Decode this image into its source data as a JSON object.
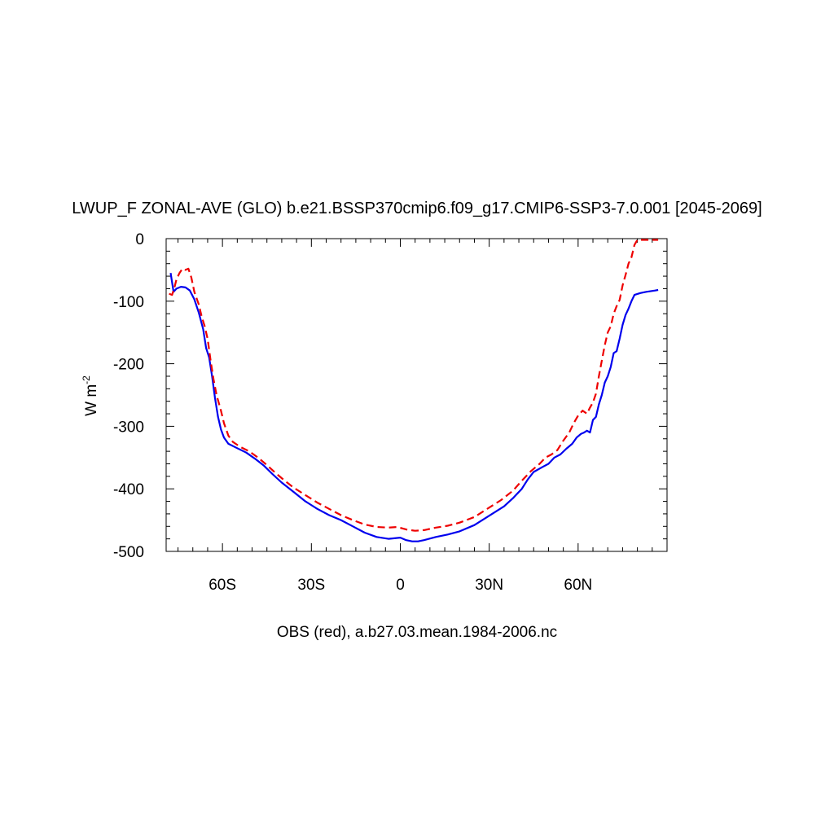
{
  "chart_data": {
    "type": "line",
    "title": "LWUP_F ZONAL-AVE (GLO) b.e21.BSSP370cmip6.f09_g17.CMIP6-SSP3-7.0.001 [2045-2069]",
    "xlabel": "OBS (red), a.b27.03.mean.1984-2006.nc",
    "ylabel": "W m",
    "ylabel_sup": "-2",
    "xlim": [
      -79,
      90
    ],
    "ylim": [
      -500,
      0
    ],
    "x_ticks": [
      {
        "value": -60,
        "label": "60S"
      },
      {
        "value": -30,
        "label": "30S"
      },
      {
        "value": 0,
        "label": "0"
      },
      {
        "value": 30,
        "label": "30N"
      },
      {
        "value": 60,
        "label": "60N"
      }
    ],
    "y_ticks": [
      {
        "value": 0,
        "label": "0"
      },
      {
        "value": -100,
        "label": "-100"
      },
      {
        "value": -200,
        "label": "-200"
      },
      {
        "value": -300,
        "label": "-300"
      },
      {
        "value": -400,
        "label": "-400"
      },
      {
        "value": -500,
        "label": "-500"
      }
    ],
    "series": [
      {
        "color": "#0000ee",
        "style": "solid",
        "points": [
          [
            -77.5,
            -55
          ],
          [
            -76.5,
            -85
          ],
          [
            -75.5,
            -80
          ],
          [
            -74,
            -77
          ],
          [
            -72.5,
            -78
          ],
          [
            -71,
            -83
          ],
          [
            -69.5,
            -97
          ],
          [
            -68,
            -118
          ],
          [
            -66.5,
            -145
          ],
          [
            -65.5,
            -175
          ],
          [
            -64.5,
            -190
          ],
          [
            -63.5,
            -220
          ],
          [
            -62.5,
            -255
          ],
          [
            -61.5,
            -285
          ],
          [
            -60.5,
            -305
          ],
          [
            -59.5,
            -318
          ],
          [
            -58,
            -328
          ],
          [
            -55,
            -335
          ],
          [
            -52,
            -342
          ],
          [
            -49,
            -352
          ],
          [
            -46,
            -363
          ],
          [
            -43,
            -377
          ],
          [
            -40,
            -390
          ],
          [
            -36,
            -405
          ],
          [
            -32,
            -420
          ],
          [
            -28,
            -432
          ],
          [
            -24,
            -442
          ],
          [
            -20,
            -450
          ],
          [
            -16,
            -460
          ],
          [
            -12,
            -470
          ],
          [
            -8,
            -477
          ],
          [
            -4,
            -480
          ],
          [
            0,
            -478
          ],
          [
            2,
            -482
          ],
          [
            4,
            -484
          ],
          [
            6,
            -484
          ],
          [
            8,
            -482
          ],
          [
            12,
            -477
          ],
          [
            16,
            -473
          ],
          [
            20,
            -468
          ],
          [
            25,
            -458
          ],
          [
            30,
            -443
          ],
          [
            35,
            -428
          ],
          [
            38,
            -415
          ],
          [
            41,
            -400
          ],
          [
            43,
            -385
          ],
          [
            45,
            -373
          ],
          [
            48,
            -365
          ],
          [
            50,
            -360
          ],
          [
            52,
            -350
          ],
          [
            54,
            -345
          ],
          [
            56,
            -336
          ],
          [
            58,
            -328
          ],
          [
            59.5,
            -318
          ],
          [
            61,
            -312
          ],
          [
            62,
            -310
          ],
          [
            63,
            -307
          ],
          [
            64,
            -310
          ],
          [
            65,
            -290
          ],
          [
            66,
            -285
          ],
          [
            67,
            -265
          ],
          [
            68,
            -250
          ],
          [
            69,
            -230
          ],
          [
            70,
            -220
          ],
          [
            71,
            -205
          ],
          [
            72,
            -183
          ],
          [
            73,
            -180
          ],
          [
            74,
            -160
          ],
          [
            75,
            -138
          ],
          [
            76,
            -122
          ],
          [
            77,
            -112
          ],
          [
            78,
            -100
          ],
          [
            79,
            -90
          ],
          [
            81,
            -87
          ],
          [
            83,
            -85
          ],
          [
            86,
            -83
          ],
          [
            87,
            -82
          ]
        ]
      },
      {
        "color": "#ee0000",
        "style": "dashed",
        "points": [
          [
            -78,
            -88
          ],
          [
            -77,
            -90
          ],
          [
            -76.2,
            -78
          ],
          [
            -75.5,
            -65
          ],
          [
            -74.5,
            -55
          ],
          [
            -73.5,
            -48
          ],
          [
            -72.5,
            -50
          ],
          [
            -71.5,
            -48
          ],
          [
            -70.5,
            -62
          ],
          [
            -69.5,
            -85
          ],
          [
            -68,
            -105
          ],
          [
            -67,
            -125
          ],
          [
            -66,
            -140
          ],
          [
            -65,
            -160
          ],
          [
            -64,
            -195
          ],
          [
            -63,
            -225
          ],
          [
            -62,
            -250
          ],
          [
            -60.5,
            -275
          ],
          [
            -59.5,
            -295
          ],
          [
            -58,
            -315
          ],
          [
            -56.5,
            -325
          ],
          [
            -54,
            -333
          ],
          [
            -51,
            -340
          ],
          [
            -48,
            -350
          ],
          [
            -45,
            -362
          ],
          [
            -42,
            -375
          ],
          [
            -39,
            -387
          ],
          [
            -36,
            -398
          ],
          [
            -32,
            -410
          ],
          [
            -28,
            -422
          ],
          [
            -24,
            -432
          ],
          [
            -20,
            -442
          ],
          [
            -16,
            -450
          ],
          [
            -12,
            -457
          ],
          [
            -8,
            -461
          ],
          [
            -4,
            -462
          ],
          [
            -1,
            -461
          ],
          [
            2,
            -465
          ],
          [
            5,
            -467
          ],
          [
            8,
            -466
          ],
          [
            12,
            -462
          ],
          [
            16,
            -459
          ],
          [
            20,
            -454
          ],
          [
            25,
            -445
          ],
          [
            30,
            -430
          ],
          [
            34,
            -418
          ],
          [
            38,
            -403
          ],
          [
            41,
            -387
          ],
          [
            44,
            -372
          ],
          [
            47,
            -360
          ],
          [
            49,
            -350
          ],
          [
            51,
            -345
          ],
          [
            53,
            -338
          ],
          [
            55,
            -323
          ],
          [
            57,
            -310
          ],
          [
            58.5,
            -295
          ],
          [
            60,
            -283
          ],
          [
            61.5,
            -275
          ],
          [
            63,
            -280
          ],
          [
            64,
            -270
          ],
          [
            65,
            -262
          ],
          [
            66,
            -248
          ],
          [
            67,
            -220
          ],
          [
            68,
            -195
          ],
          [
            69,
            -170
          ],
          [
            70,
            -150
          ],
          [
            71,
            -140
          ],
          [
            72,
            -120
          ],
          [
            73,
            -108
          ],
          [
            74,
            -98
          ],
          [
            75,
            -75
          ],
          [
            76,
            -58
          ],
          [
            77,
            -40
          ],
          [
            78,
            -30
          ],
          [
            79,
            -10
          ],
          [
            80,
            -2
          ],
          [
            82,
            -2
          ],
          [
            87,
            -2
          ]
        ]
      }
    ]
  }
}
